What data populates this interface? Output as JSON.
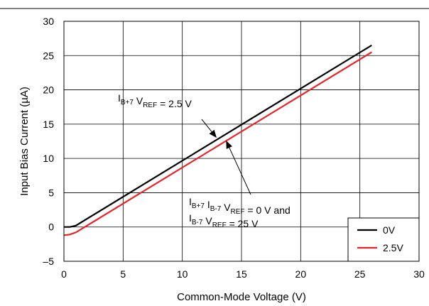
{
  "chart_data": {
    "type": "line",
    "xlabel": "Common-Mode Voltage (V)",
    "ylabel": "Input Bias Current (µA)",
    "xlim": [
      0,
      30
    ],
    "ylim": [
      -5,
      30
    ],
    "x_ticks": [
      "0",
      "5",
      "10",
      "15",
      "20",
      "25",
      "30"
    ],
    "y_ticks": [
      "–5",
      "0",
      "5",
      "10",
      "15",
      "20",
      "25",
      "30"
    ],
    "grid": true,
    "legend_position": "bottom-right",
    "series": [
      {
        "name": "0V",
        "color": "#000000",
        "x": [
          0,
          0.5,
          1,
          26
        ],
        "y": [
          0,
          0,
          0.2,
          26.5
        ]
      },
      {
        "name": "2.5V",
        "color": "#e8242a",
        "x": [
          0,
          0.5,
          1,
          26
        ],
        "y": [
          -1.2,
          -1.1,
          -0.8,
          25.5
        ]
      }
    ],
    "annotations": [
      {
        "lines": [
          [
            {
              "t": "I"
            },
            {
              "t": "B+7",
              "sub": true
            },
            {
              "t": " V"
            },
            {
              "t": "REF",
              "sub": true
            },
            {
              "t": " = 2.5 V"
            }
          ]
        ],
        "points_to": {
          "x": 12.9,
          "y": 13.0
        }
      },
      {
        "lines": [
          [
            {
              "t": "I"
            },
            {
              "t": "B+7",
              "sub": true
            },
            {
              "t": " I"
            },
            {
              "t": "B-7",
              "sub": true
            },
            {
              "t": " V"
            },
            {
              "t": "REF",
              "sub": true
            },
            {
              "t": " = 0 V and"
            }
          ],
          [
            {
              "t": "I"
            },
            {
              "t": "B-7",
              "sub": true
            },
            {
              "t": " V"
            },
            {
              "t": "REF",
              "sub": true
            },
            {
              "t": " = 25 V"
            }
          ]
        ],
        "points_to": {
          "x": 13.7,
          "y": 12.6
        }
      }
    ]
  }
}
